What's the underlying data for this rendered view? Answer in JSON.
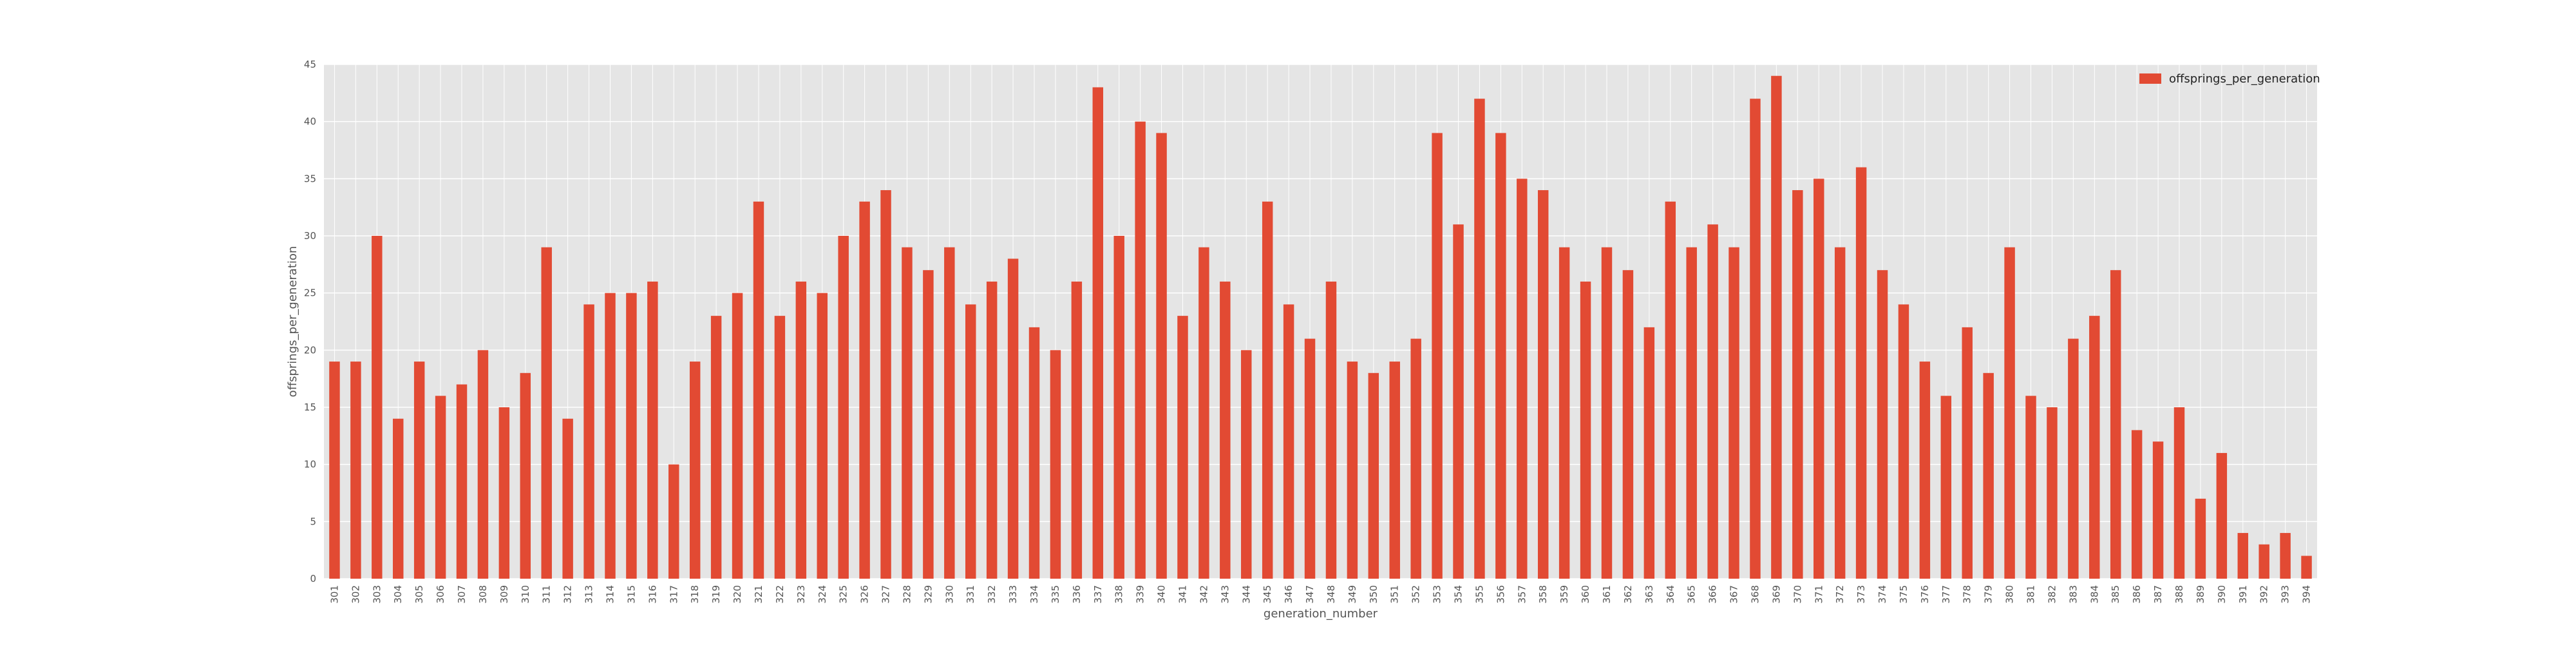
{
  "chart_data": {
    "type": "bar",
    "title": "",
    "xlabel": "generation_number",
    "ylabel": "offsprings_per_generation",
    "ylim": [
      0,
      45
    ],
    "yticks": [
      0,
      5,
      10,
      15,
      20,
      25,
      30,
      35,
      40,
      45
    ],
    "grid": true,
    "legend_position": "top-right",
    "colors": {
      "bar": "#E24A33",
      "plot_bg": "#E5E5E5",
      "grid": "#FFFFFF",
      "text": "#555555"
    },
    "categories": [
      "301",
      "302",
      "303",
      "304",
      "305",
      "306",
      "307",
      "308",
      "309",
      "310",
      "311",
      "312",
      "313",
      "314",
      "315",
      "316",
      "317",
      "318",
      "319",
      "320",
      "321",
      "322",
      "323",
      "324",
      "325",
      "326",
      "327",
      "328",
      "329",
      "330",
      "331",
      "332",
      "333",
      "334",
      "335",
      "336",
      "337",
      "338",
      "339",
      "340",
      "341",
      "342",
      "343",
      "344",
      "345",
      "346",
      "347",
      "348",
      "349",
      "350",
      "351",
      "352",
      "353",
      "354",
      "355",
      "356",
      "357",
      "358",
      "359",
      "360",
      "361",
      "362",
      "363",
      "364",
      "365",
      "366",
      "367",
      "368",
      "369",
      "370",
      "371",
      "372",
      "373",
      "374",
      "375",
      "376",
      "377",
      "378",
      "379",
      "380",
      "381",
      "382",
      "383",
      "384",
      "385",
      "386",
      "387",
      "388",
      "389",
      "390",
      "391",
      "392",
      "393",
      "394"
    ],
    "series": [
      {
        "name": "offsprings_per_generation",
        "values": [
          19,
          19,
          30,
          14,
          19,
          16,
          17,
          20,
          15,
          18,
          29,
          14,
          24,
          25,
          25,
          26,
          10,
          19,
          23,
          25,
          33,
          23,
          26,
          25,
          30,
          33,
          34,
          29,
          27,
          29,
          24,
          26,
          28,
          22,
          20,
          26,
          43,
          30,
          40,
          39,
          23,
          29,
          26,
          20,
          33,
          24,
          21,
          26,
          19,
          18,
          19,
          21,
          39,
          31,
          42,
          39,
          35,
          34,
          29,
          26,
          29,
          27,
          22,
          33,
          29,
          31,
          29,
          42,
          44,
          34,
          35,
          29,
          36,
          27,
          24,
          19,
          16,
          22,
          18,
          29,
          16,
          15,
          21,
          23,
          27,
          13,
          12,
          15,
          7,
          11,
          4,
          3,
          4,
          2
        ]
      }
    ]
  }
}
